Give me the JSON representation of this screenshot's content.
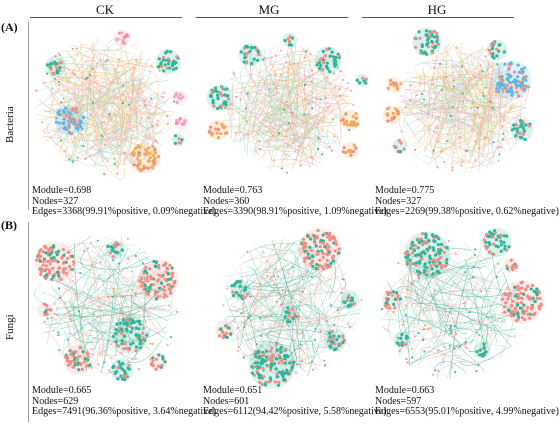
{
  "columns": [
    "CK",
    "MG",
    "HG"
  ],
  "rows": [
    {
      "panel": "(A)",
      "label": "Bacteria",
      "networks": [
        {
          "module": "Module=0.698",
          "nodes": "Nodes=327",
          "edges": "Edges=3368(99.91%positive, 0.09%negative)"
        },
        {
          "module": "Module=0.763",
          "nodes": "Nodes=360",
          "edges": "Edges=3390(98.91%positive, 1.09%negative)"
        },
        {
          "module": "Module=0.775",
          "nodes": "Nodes=327",
          "edges": "Edges=2269(99.38%positive, 0.62%negative)"
        }
      ]
    },
    {
      "panel": "(B)",
      "label": "Fungi",
      "networks": [
        {
          "module": "Module=0.665",
          "nodes": "Nodes=629",
          "edges": "Edges=7491(96.36%positive, 3.64%negative)"
        },
        {
          "module": "Module=0.651",
          "nodes": "Nodes=601",
          "edges": "Edges=6112(94.42%positive, 5.58%negative)"
        },
        {
          "module": "Module=0.663",
          "nodes": "Nodes=597",
          "edges": "Edges=6553(95.01%positive, 4.99%negative)"
        }
      ]
    }
  ],
  "colors": {
    "bacteria_edges": [
      "#f2b36b",
      "#f7c98f",
      "#9ad4c4",
      "#e6a3c8",
      "#b9dfa6"
    ],
    "fungi_edges": [
      "#3aa88c",
      "#7cc9b3",
      "#f0a896",
      "#b5e0d4"
    ],
    "node_teal": "#2fb59a",
    "node_salmon": "#f08f86",
    "node_orange": "#f5a75a",
    "node_blue": "#5bb8e6",
    "node_pink": "#f4a6c8"
  }
}
